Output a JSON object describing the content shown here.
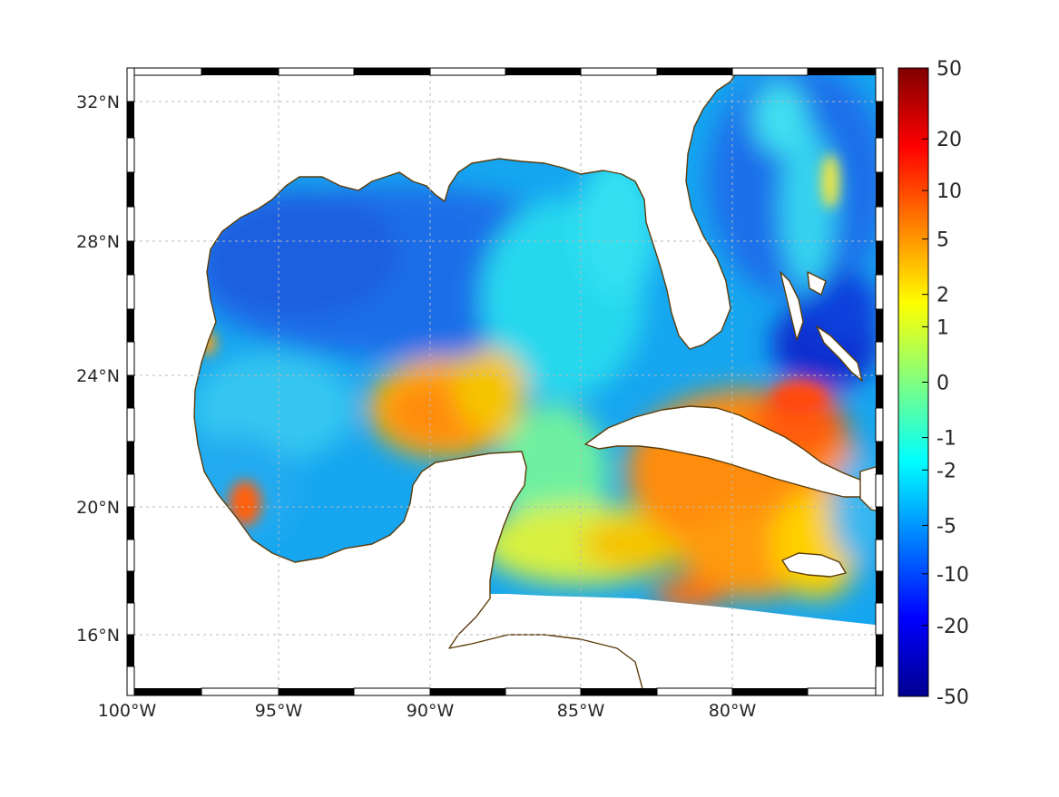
{
  "map": {
    "projection": "mercator",
    "lon_range": [
      -100,
      -75
    ],
    "lat_range": [
      14.3,
      33
    ],
    "x_ticks": [
      "100°W",
      "95°W",
      "90°W",
      "85°W",
      "80°W"
    ],
    "x_tick_values": [
      -100,
      -95,
      -90,
      -85,
      -80
    ],
    "y_ticks": [
      "32°N",
      "28°N",
      "24°N",
      "20°N",
      "16°N"
    ],
    "y_tick_values": [
      32,
      28,
      24,
      20,
      16
    ],
    "grid": true,
    "frame": "black-and-white alternating border",
    "coastline_color": "#5a3c0a",
    "land_color": "#ffffff",
    "colormap": "jet"
  },
  "colorbar": {
    "placement": "right",
    "ticks": [
      "50",
      "20",
      "10",
      "5",
      "2",
      "1",
      "0",
      "-1",
      "-2",
      "-5",
      "-10",
      "-20",
      "-50"
    ],
    "tick_values": [
      50,
      20,
      10,
      5,
      2,
      1,
      0,
      -1,
      -2,
      -5,
      -10,
      -20,
      -50
    ],
    "range": [
      -50,
      50
    ]
  },
  "field_regions": [
    {
      "region": "northern Gulf of Mexico",
      "approx_value": -7
    },
    {
      "region": "central-eastern Gulf (south of 26°N)",
      "approx_value": 5
    },
    {
      "region": "Bay of Campeche coast",
      "approx_value": 10
    },
    {
      "region": "south of Cuba / Cayman basin",
      "approx_value": 8
    },
    {
      "region": "Yucatán Channel",
      "approx_value": 1
    },
    {
      "region": "Atlantic east of Florida",
      "approx_value": -10
    },
    {
      "region": "Bahamas",
      "approx_value": -25
    }
  ]
}
